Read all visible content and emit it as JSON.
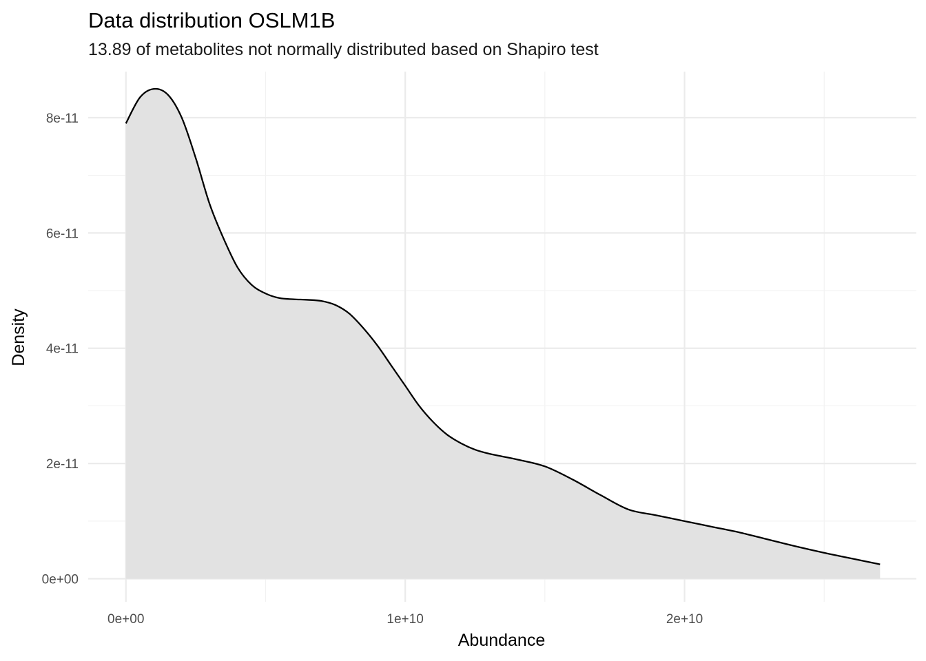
{
  "chart_data": {
    "type": "area",
    "title": "Data distribution  OSLM1B",
    "subtitle": "13.89  of metabolites not normally distributed based on Shapiro test",
    "xlabel": "Abundance",
    "ylabel": "Density",
    "xlim": [
      -1350000000.0,
      28300000000.0
    ],
    "ylim": [
      -4e-12,
      8.8e-11
    ],
    "x_ticks": [
      0,
      10000000000.0,
      20000000000.0
    ],
    "x_tick_labels": [
      "0e+00",
      "1e+10",
      "2e+10"
    ],
    "y_ticks": [
      0,
      2e-11,
      4e-11,
      6e-11,
      8e-11
    ],
    "y_tick_labels": [
      "0e+00",
      "2e-11",
      "4e-11",
      "6e-11",
      "8e-11"
    ],
    "grid": true,
    "fill_color": "#e2e2e2",
    "line_color": "#000000",
    "x": [
      0,
      500000000.0,
      1000000000.0,
      1500000000.0,
      2000000000.0,
      2500000000.0,
      3000000000.0,
      3500000000.0,
      4000000000.0,
      4500000000.0,
      5000000000.0,
      5500000000.0,
      6000000000.0,
      6500000000.0,
      7000000000.0,
      7500000000.0,
      8000000000.0,
      8500000000.0,
      9000000000.0,
      9500000000.0,
      10000000000.0,
      10500000000.0,
      11000000000.0,
      11500000000.0,
      12000000000.0,
      12500000000.0,
      13000000000.0,
      13500000000.0,
      14000000000.0,
      15000000000.0,
      16000000000.0,
      17000000000.0,
      18000000000.0,
      19000000000.0,
      20000000000.0,
      21000000000.0,
      22000000000.0,
      23000000000.0,
      24000000000.0,
      25000000000.0,
      26000000000.0,
      27000000000.0
    ],
    "values": [
      7.9e-11,
      8.35e-11,
      8.5e-11,
      8.4e-11,
      8e-11,
      7.3e-11,
      6.5e-11,
      5.9e-11,
      5.4e-11,
      5.1e-11,
      4.95e-11,
      4.87e-11,
      4.85e-11,
      4.84e-11,
      4.82e-11,
      4.75e-11,
      4.6e-11,
      4.35e-11,
      4.05e-11,
      3.7e-11,
      3.35e-11,
      3e-11,
      2.72e-11,
      2.5e-11,
      2.35e-11,
      2.24e-11,
      2.17e-11,
      2.12e-11,
      2.07e-11,
      1.95e-11,
      1.72e-11,
      1.45e-11,
      1.2e-11,
      1.1e-11,
      1e-11,
      9e-12,
      8e-12,
      6.8e-12,
      5.6e-12,
      4.5e-12,
      3.5e-12,
      2.5e-12
    ]
  }
}
